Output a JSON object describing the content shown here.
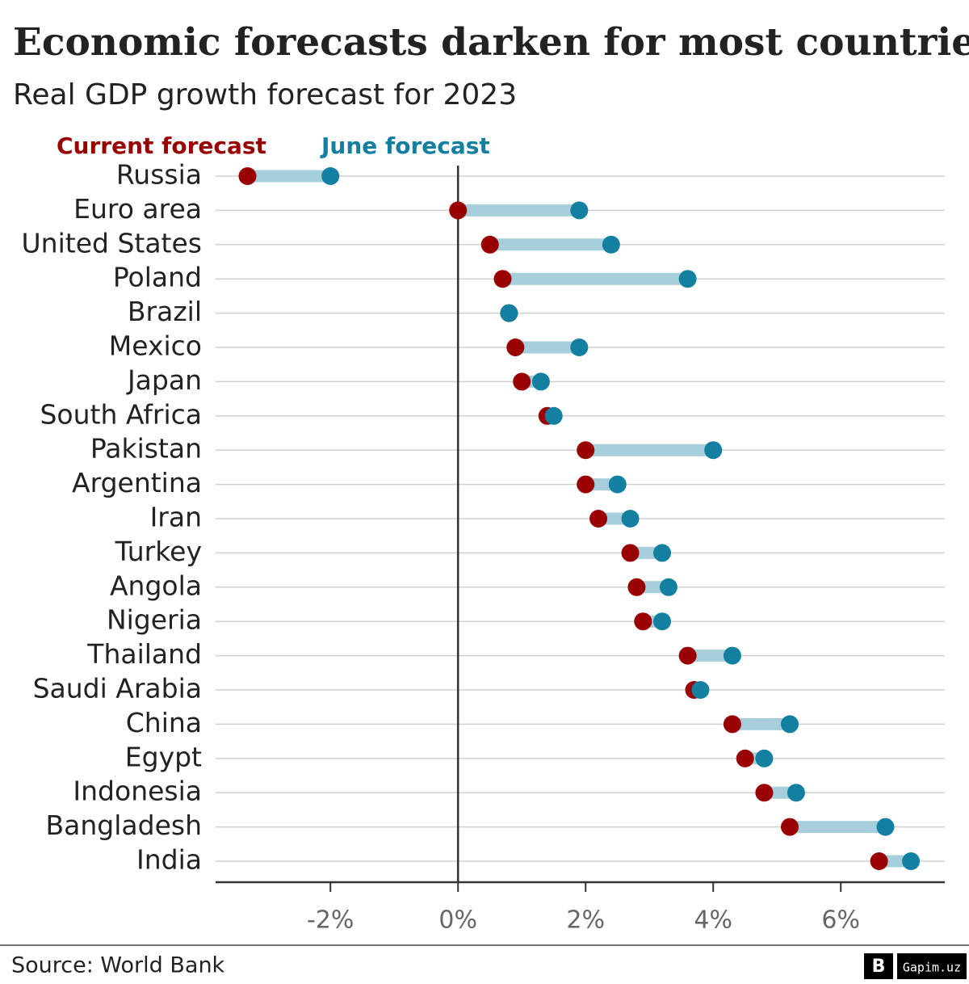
{
  "chart_data": {
    "type": "dumbbell",
    "title": "Economic forecasts darken for most countries",
    "subtitle": "Real GDP growth forecast for 2023",
    "source": "Source: World Bank",
    "watermark": "Gapim.uz",
    "categories": [
      "Russia",
      "Euro area",
      "United States",
      "Poland",
      "Brazil",
      "Mexico",
      "Japan",
      "South Africa",
      "Pakistan",
      "Argentina",
      "Iran",
      "Turkey",
      "Angola",
      "Nigeria",
      "Thailand",
      "Saudi Arabia",
      "China",
      "Egypt",
      "Indonesia",
      "Bangladesh",
      "India"
    ],
    "series": [
      {
        "name": "Current forecast",
        "color": "#990000",
        "values": [
          -3.3,
          0,
          0.5,
          0.7,
          0.8,
          0.9,
          1.0,
          1.4,
          2.0,
          2.0,
          2.2,
          2.7,
          2.8,
          2.9,
          3.6,
          3.7,
          4.3,
          4.5,
          4.8,
          5.2,
          6.6
        ]
      },
      {
        "name": "June forecast",
        "color": "#1380a1",
        "values": [
          -2.0,
          1.9,
          2.4,
          3.6,
          0.8,
          1.9,
          1.3,
          1.5,
          4.0,
          2.5,
          2.7,
          3.2,
          3.3,
          3.2,
          4.3,
          3.8,
          5.2,
          4.8,
          5.3,
          6.7,
          7.1
        ]
      }
    ],
    "connector_color": "#a6cfdb",
    "xlim": [
      -3.8,
      7.63
    ],
    "xticks": [
      {
        "value": -2,
        "label": "-2%"
      },
      {
        "value": 0,
        "label": "0%"
      },
      {
        "value": 2,
        "label": "2%"
      },
      {
        "value": 4,
        "label": "4%"
      },
      {
        "value": 6,
        "label": "6%"
      }
    ],
    "grid": true
  }
}
